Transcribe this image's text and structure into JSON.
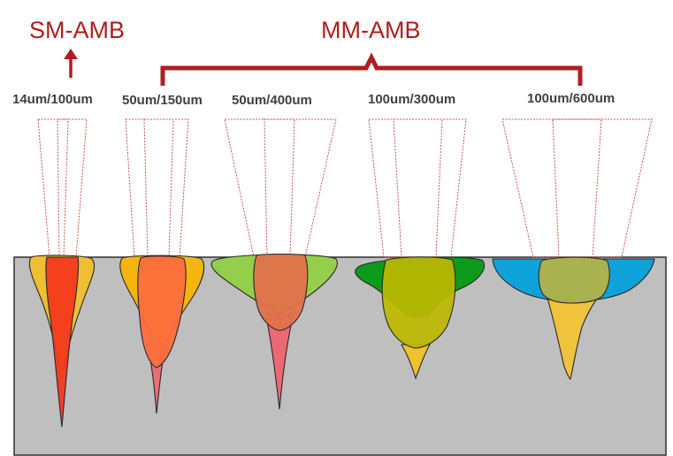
{
  "headers": {
    "single_mode": "SM-AMB",
    "multi_mode": "MM-AMB"
  },
  "configurations": [
    {
      "label": "14um/100um"
    },
    {
      "label": "50um/150um"
    },
    {
      "label": "50um/400um"
    },
    {
      "label": "100um/300um"
    },
    {
      "label": "100um/600um"
    }
  ],
  "colors": {
    "accent": "#b01e1e",
    "substrate": "#bfbfbf",
    "beam_outline": "#d05050"
  }
}
